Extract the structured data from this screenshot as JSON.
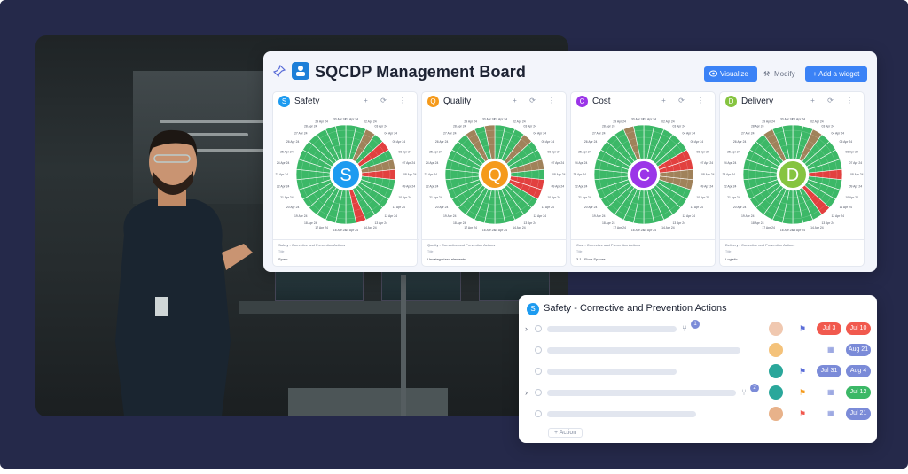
{
  "board": {
    "title": "SQCDP Management Board",
    "buttons": {
      "visualize": "Visualize",
      "modify": "Modify",
      "add_widget": "+ Add a widget"
    }
  },
  "colors": {
    "good": "#3cb867",
    "bad": "#e2403f",
    "neutral": "#a0825a",
    "safety": "#1d9bf0",
    "quality": "#f59a1b",
    "cost": "#9b35e8",
    "delivery": "#86c440"
  },
  "widgets": [
    {
      "key": "safety",
      "title": "Safety",
      "letter": "S",
      "footer": "Safety - Corrective and Prevention Actions",
      "foot_sub": "Title",
      "foot_item": "Spam",
      "statuses": [
        "good",
        "good",
        "neutral",
        "good",
        "bad",
        "good",
        "neutral",
        "bad",
        "good",
        "good",
        "good",
        "good",
        "good",
        "bad",
        "good",
        "good",
        "good",
        "good",
        "good",
        "good",
        "good",
        "good",
        "good",
        "good",
        "good",
        "good",
        "good",
        "good",
        "good",
        "good"
      ]
    },
    {
      "key": "quality",
      "title": "Quality",
      "letter": "Q",
      "footer": "Quality - Corrective and Prevention Actions",
      "foot_sub": "Title",
      "foot_item": "Uncategorized elements",
      "statuses": [
        "good",
        "good",
        "good",
        "neutral",
        "good",
        "good",
        "neutral",
        "good",
        "bad",
        "bad",
        "good",
        "good",
        "good",
        "good",
        "good",
        "good",
        "good",
        "good",
        "good",
        "good",
        "good",
        "good",
        "good",
        "good",
        "good",
        "good",
        "good",
        "neutral",
        "good",
        "neutral"
      ]
    },
    {
      "key": "cost",
      "title": "Cost",
      "letter": "C",
      "footer": "Cost - Corrective and Prevention Actions",
      "foot_sub": "Title",
      "foot_item": "3.1 - Floor Spaces",
      "statuses": [
        "good",
        "good",
        "good",
        "good",
        "good",
        "bad",
        "bad",
        "neutral",
        "neutral",
        "good",
        "good",
        "good",
        "good",
        "good",
        "good",
        "good",
        "good",
        "good",
        "good",
        "good",
        "good",
        "good",
        "good",
        "good",
        "good",
        "good",
        "good",
        "good",
        "neutral",
        "good"
      ]
    },
    {
      "key": "delivery",
      "title": "Delivery",
      "letter": "D",
      "footer": "Delivery - Corrective and Prevention Actions",
      "foot_sub": "Title",
      "foot_item": "Logistic",
      "statuses": [
        "good",
        "good",
        "neutral",
        "good",
        "good",
        "good",
        "good",
        "bad",
        "good",
        "good",
        "good",
        "bad",
        "good",
        "good",
        "good",
        "good",
        "good",
        "good",
        "good",
        "good",
        "good",
        "good",
        "good",
        "good",
        "good",
        "good",
        "good",
        "neutral",
        "good",
        "good"
      ]
    }
  ],
  "day_labels": [
    "01 Apr 24",
    "02 Apr 24",
    "03 Apr 24",
    "04 Apr 24",
    "05 Apr 24",
    "06 Apr 24",
    "07 Apr 24",
    "08 Apr 24",
    "09 Apr 24",
    "10 Apr 24",
    "11 Apr 24",
    "12 Apr 24",
    "13 Apr 24",
    "14 Apr 24",
    "15 Apr 24",
    "16 Apr 24",
    "17 Apr 24",
    "18 Apr 24",
    "19 Apr 24",
    "20 Apr 24",
    "21 Apr 24",
    "22 Apr 24",
    "23 Apr 24",
    "24 Apr 24",
    "25 Apr 24",
    "26 Apr 24",
    "27 Apr 24",
    "28 Apr 24",
    "29 Apr 24",
    "30 Apr 24"
  ],
  "panel": {
    "badge": "S",
    "title": "Safety - Corrective and Prevention Actions",
    "add_action": "+ Action",
    "rows": [
      {
        "expand": true,
        "sub_count": "1",
        "skel": 0.52,
        "avatar": "#f0c8b0",
        "flag": "#5a6dd8",
        "date1": "Jul 3",
        "date1_color": "#f1594e",
        "date2": "Jul 10",
        "date2_color": "#f1594e"
      },
      {
        "expand": false,
        "sub_count": "",
        "skel": 0.78,
        "avatar": "#f4c27a",
        "flag": "",
        "date1": "",
        "date1_color": "",
        "date2": "Aug 21",
        "date2_color": "#7b8bd8",
        "cal": true
      },
      {
        "expand": false,
        "sub_count": "",
        "skel": 0.52,
        "avatar": "#2aa79b",
        "flag": "#5a6dd8",
        "date1": "Jul 31",
        "date1_color": "#7b8bd8",
        "date2": "Aug 4",
        "date2_color": "#7b8bd8"
      },
      {
        "expand": true,
        "sub_count": "2",
        "skel": 0.76,
        "avatar": "#2aa79b",
        "flag": "#f59a1b",
        "date1": "",
        "date1_color": "",
        "date2": "Jul 12",
        "date2_color": "#3cb867",
        "cal": true
      },
      {
        "expand": false,
        "sub_count": "",
        "skel": 0.6,
        "avatar": "#e8b28a",
        "flag": "#f1594e",
        "date1": "",
        "date1_color": "",
        "date2": "Jul 21",
        "date2_color": "#7b8bd8",
        "cal": true
      }
    ]
  }
}
